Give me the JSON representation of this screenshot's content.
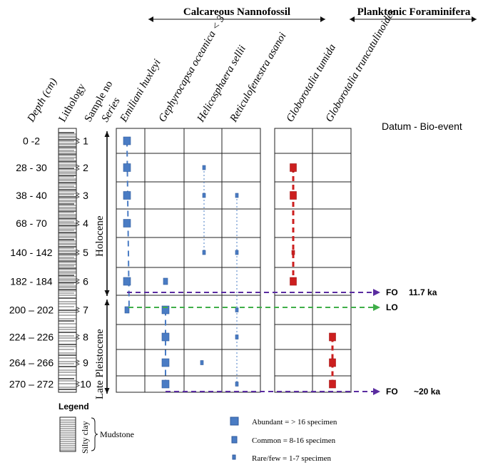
{
  "headers": {
    "nannofossil": "Calcareous Nannofossil",
    "foraminifera": "Planktonic Foraminifera"
  },
  "columns": {
    "depth": "Depth (cm)",
    "lithology": "Lithology",
    "sample": "Sample no",
    "series": "Series"
  },
  "species": [
    "Emiliani huxleyi",
    "Gephyrocapsa oceanica < 3",
    "Helicosphaera  sellii",
    "Reticulofenestra  asanoi",
    "Globorotalia tumida",
    "Globorotalia truncatulinoides"
  ],
  "datum_title": "Datum  - Bio-event",
  "samples": [
    {
      "no": "1",
      "depth": "0 -2"
    },
    {
      "no": "2",
      "depth": "28 - 30"
    },
    {
      "no": "3",
      "depth": "38 - 40"
    },
    {
      "no": "4",
      "depth": "68 - 70"
    },
    {
      "no": "5",
      "depth": "140 - 142"
    },
    {
      "no": "6",
      "depth": "182 - 184"
    },
    {
      "no": "7",
      "depth": "200 – 202"
    },
    {
      "no": "8",
      "depth": "224 – 226"
    },
    {
      "no": "9",
      "depth": "264 – 266"
    },
    {
      "no": "10",
      "depth": "270 – 272"
    }
  ],
  "series": {
    "upper": "Holocene",
    "lower": "Late Pleistocene"
  },
  "occurrences": [
    {
      "species": 0,
      "sample": 1,
      "abundance": "abundant"
    },
    {
      "species": 0,
      "sample": 2,
      "abundance": "abundant"
    },
    {
      "species": 0,
      "sample": 3,
      "abundance": "abundant"
    },
    {
      "species": 0,
      "sample": 4,
      "abundance": "abundant"
    },
    {
      "species": 0,
      "sample": 6,
      "abundance": "abundant"
    },
    {
      "species": 0,
      "sample": 7,
      "abundance": "common"
    },
    {
      "species": 1,
      "sample": 6,
      "abundance": "common"
    },
    {
      "species": 1,
      "sample": 7,
      "abundance": "abundant"
    },
    {
      "species": 1,
      "sample": 8,
      "abundance": "abundant"
    },
    {
      "species": 1,
      "sample": 9,
      "abundance": "abundant"
    },
    {
      "species": 1,
      "sample": 10,
      "abundance": "abundant"
    },
    {
      "species": 2,
      "sample": 2,
      "abundance": "rare"
    },
    {
      "species": 2,
      "sample": 3,
      "abundance": "rare"
    },
    {
      "species": 2,
      "sample": 5,
      "abundance": "rare"
    },
    {
      "species": 2,
      "sample": 9,
      "abundance": "rare"
    },
    {
      "species": 3,
      "sample": 3,
      "abundance": "rare"
    },
    {
      "species": 3,
      "sample": 5,
      "abundance": "rare"
    },
    {
      "species": 3,
      "sample": 7,
      "abundance": "rare"
    },
    {
      "species": 3,
      "sample": 8,
      "abundance": "rare"
    },
    {
      "species": 3,
      "sample": 10,
      "abundance": "rare"
    },
    {
      "species": 4,
      "sample": 2,
      "abundance": "abundant"
    },
    {
      "species": 4,
      "sample": 3,
      "abundance": "abundant"
    },
    {
      "species": 4,
      "sample": 5,
      "abundance": "rare"
    },
    {
      "species": 4,
      "sample": 6,
      "abundance": "abundant"
    },
    {
      "species": 5,
      "sample": 8,
      "abundance": "abundant"
    },
    {
      "species": 5,
      "sample": 9,
      "abundance": "abundant"
    },
    {
      "species": 5,
      "sample": 10,
      "abundance": "abundant"
    }
  ],
  "ranges": [
    {
      "species": 0,
      "from": 1,
      "to": 7,
      "color": "#4a7cc4",
      "style": "dashed-thick"
    },
    {
      "species": 1,
      "from": 7,
      "to": 10,
      "color": "#4a7cc4",
      "style": "dashed-thick"
    },
    {
      "species": 2,
      "from": 2,
      "to": 5,
      "color": "#4a7cc4",
      "style": "dotted"
    },
    {
      "species": 3,
      "from": 3,
      "to": 10,
      "color": "#4a7cc4",
      "style": "dotted"
    },
    {
      "species": 4,
      "from": 2,
      "to": 6,
      "color": "#cc1f1f",
      "style": "dashed-red"
    },
    {
      "species": 5,
      "from": 8,
      "to": 10,
      "color": "#cc1f1f",
      "style": "dashed-red"
    }
  ],
  "bioevents": [
    {
      "label": "FO",
      "age": "11.7 ka",
      "color": "#5a2ca0",
      "sample": 6
    },
    {
      "label": "LO",
      "age": "",
      "color": "#3fae49",
      "sample": 7
    },
    {
      "label": "FO",
      "age": "~20 ka",
      "color": "#5a2ca0",
      "sample": 10
    }
  ],
  "colors": {
    "nanno": "#4a7cc4",
    "nanno_edge": "#2f5a9c",
    "foram": "#cc1f1f",
    "fo": "#5a2ca0",
    "lo": "#3fae49"
  },
  "legend": {
    "title": "Legend",
    "lith_label": "Silty clay",
    "lith_group": "Mudstone",
    "abundant": "Abundant  = > 16 specimen",
    "common": "Common = 8-16 specimen",
    "rare": "Rare/few = 1-7 specimen"
  }
}
